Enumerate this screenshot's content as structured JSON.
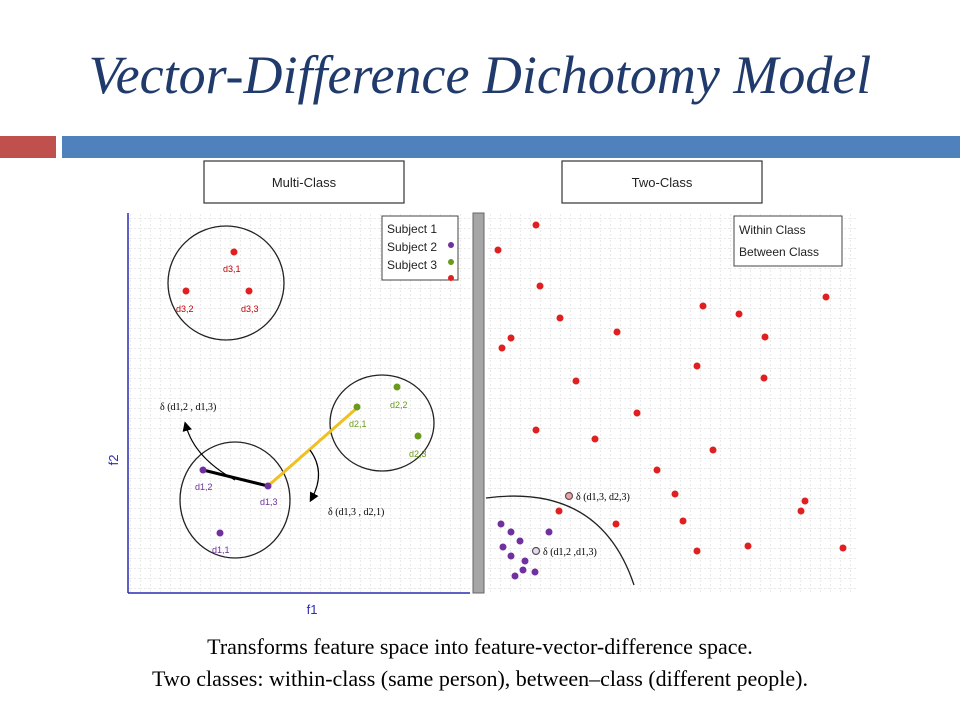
{
  "slide": {
    "title": "Vector-Difference Dichotomy Model",
    "caption_line1": "Transforms feature space into feature-vector-difference space.",
    "caption_line2": "Two classes: within-class (same person), between–class (different people)."
  },
  "colors": {
    "title": "#1f3a6b",
    "bar_red": "#c0504d",
    "bar_blue": "#4f81bd",
    "red_point": "#e02020",
    "purple_point": "#7030a0",
    "green_point": "#6a9a1a",
    "yellow_line": "#f0c020"
  },
  "left_panel": {
    "header": "Multi-Class",
    "axis_x": "f1",
    "axis_y": "f2",
    "legend": [
      "Subject 1",
      "Subject 2",
      "Subject 3"
    ],
    "points": [
      {
        "label": "d3,1",
        "color": "red"
      },
      {
        "label": "d3,2",
        "color": "red"
      },
      {
        "label": "d3,3",
        "color": "red"
      },
      {
        "label": "d2,2",
        "color": "green"
      },
      {
        "label": "d2,1",
        "color": "green"
      },
      {
        "label": "d2,3",
        "color": "green"
      },
      {
        "label": "d1,2",
        "color": "purple"
      },
      {
        "label": "d1,3",
        "color": "purple"
      },
      {
        "label": "d1,1",
        "color": "purple"
      }
    ],
    "annotation_within": "δ (d1,2 , d1,3)",
    "annotation_between": "δ (d1,3 , d2,1)"
  },
  "right_panel": {
    "header": "Two-Class",
    "legend": [
      "Within Class",
      "Between Class"
    ],
    "annotation_between": "δ (d1,3, d2,3)",
    "annotation_within": "δ (d1,2 ,d1,3)"
  }
}
